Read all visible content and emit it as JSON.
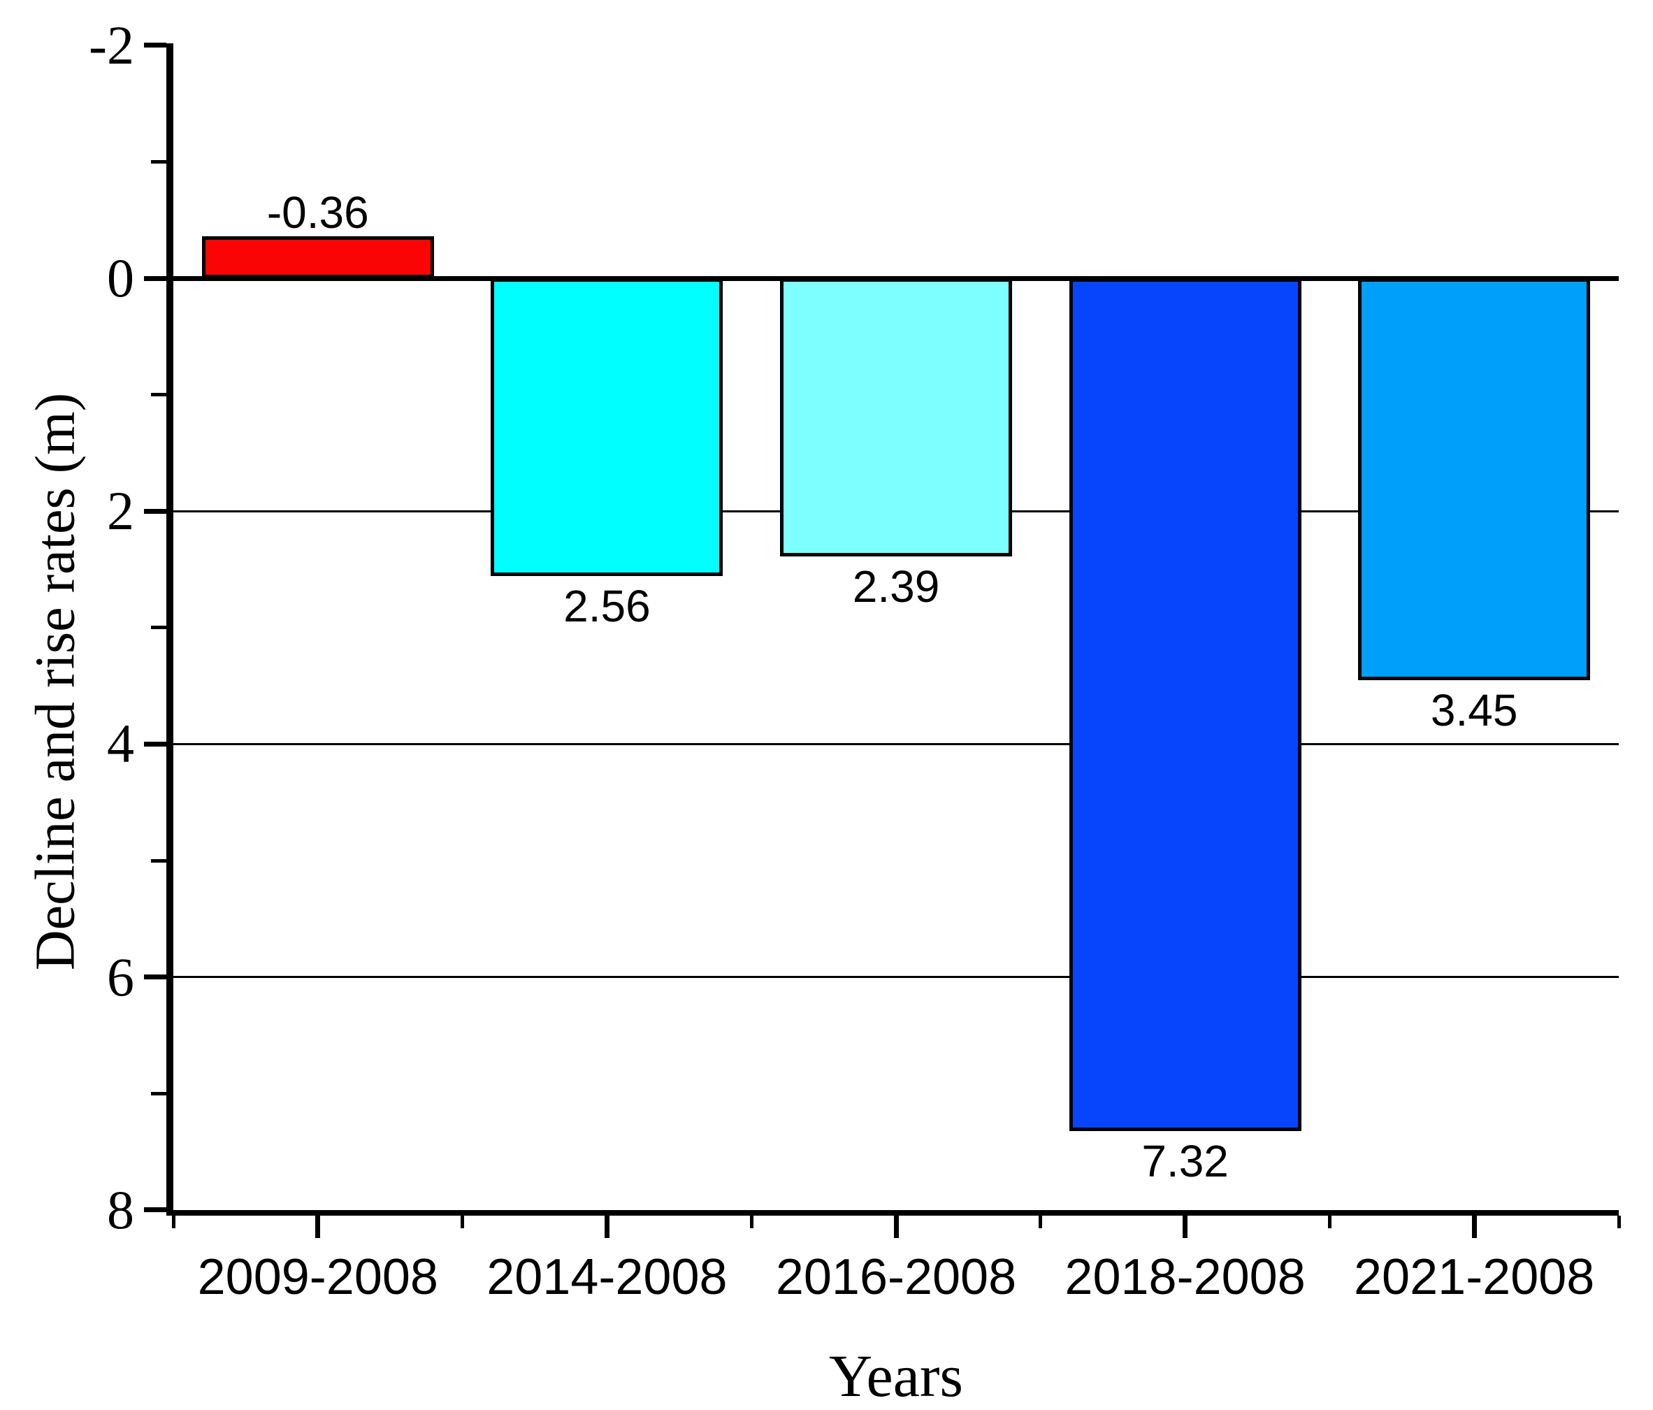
{
  "chart_data": {
    "type": "bar",
    "title": "",
    "xlabel": "Years",
    "ylabel": "Decline and rise rates (m)",
    "categories": [
      "2009-2008",
      "2014-2008",
      "2016-2008",
      "2018-2008",
      "2021-2008"
    ],
    "values": [
      -0.36,
      2.56,
      2.39,
      7.32,
      3.45
    ],
    "bar_labels": [
      "-0.36",
      "2.56",
      "2.39",
      "7.32",
      "3.45"
    ],
    "bar_colors": [
      "#fa0505",
      "#00ffff",
      "#7dffff",
      "#0645fb",
      "#00a0fa"
    ],
    "bar_border_color": "#000000",
    "axis_color": "#000000",
    "background_color": "#ffffff",
    "grid_on": true,
    "legend": "none",
    "y_axis": {
      "inverted": true,
      "min": -2,
      "max": 8,
      "major_ticks": [
        -2,
        0,
        2,
        4,
        6,
        8
      ],
      "tick_labels": [
        "-2",
        "0",
        "2",
        "4",
        "6",
        "8"
      ],
      "minor_ticks": [
        -1,
        1,
        3,
        5,
        7
      ],
      "gridlines_at": [
        2,
        4,
        6
      ],
      "zero_line": true
    },
    "x_axis": {
      "ticks_at_category_centers": true,
      "minor_ticks_at_category_boundaries": true
    }
  }
}
